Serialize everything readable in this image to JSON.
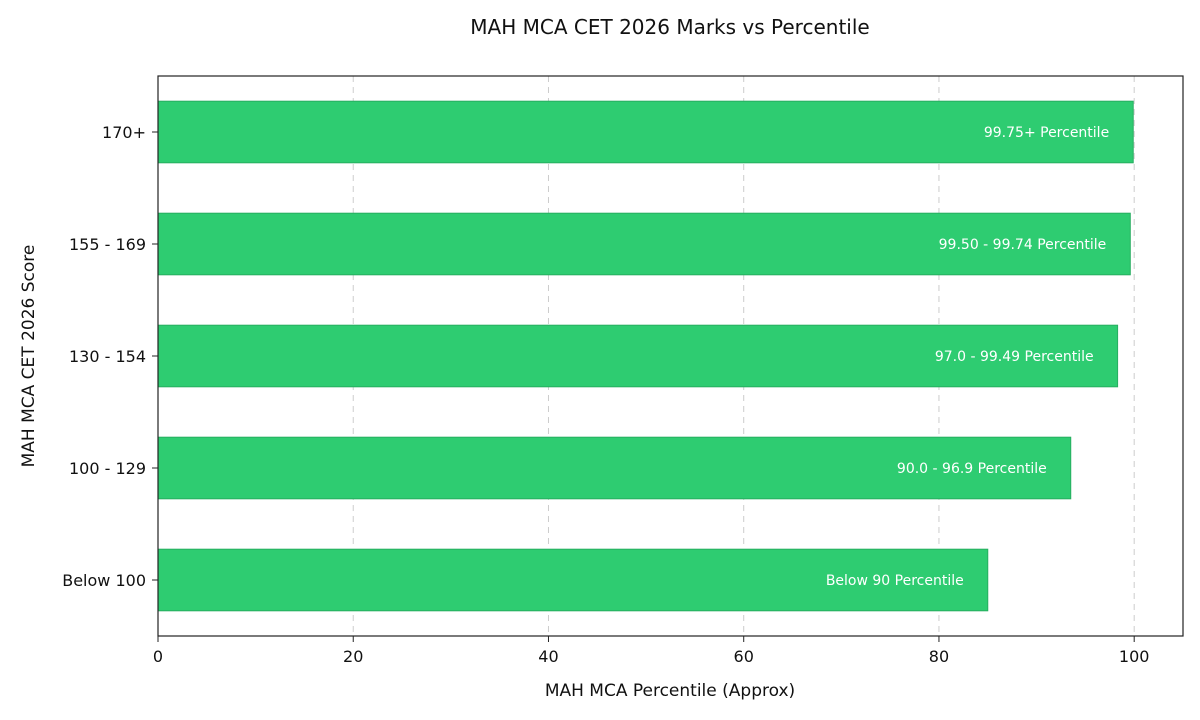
{
  "chart_data": {
    "type": "bar",
    "orientation": "horizontal",
    "title": "MAH MCA CET 2026 Marks vs Percentile",
    "xlabel": "MAH MCA Percentile (Approx)",
    "ylabel": "MAH MCA CET 2026 Score",
    "xlim": [
      0,
      105
    ],
    "xticks": [
      0,
      20,
      40,
      60,
      80,
      100
    ],
    "grid": "vertical dashed",
    "bar_color": "#2ecc71",
    "categories": [
      "170+",
      "155 - 169",
      "130 - 154",
      "100 - 129",
      "Below 100"
    ],
    "values": [
      99.9,
      99.6,
      98.3,
      93.5,
      85
    ],
    "bar_labels": [
      "99.75+ Percentile",
      "99.50 - 99.74 Percentile",
      "97.0 - 99.49 Percentile",
      "90.0 - 96.9 Percentile",
      "Below 90 Percentile"
    ]
  }
}
